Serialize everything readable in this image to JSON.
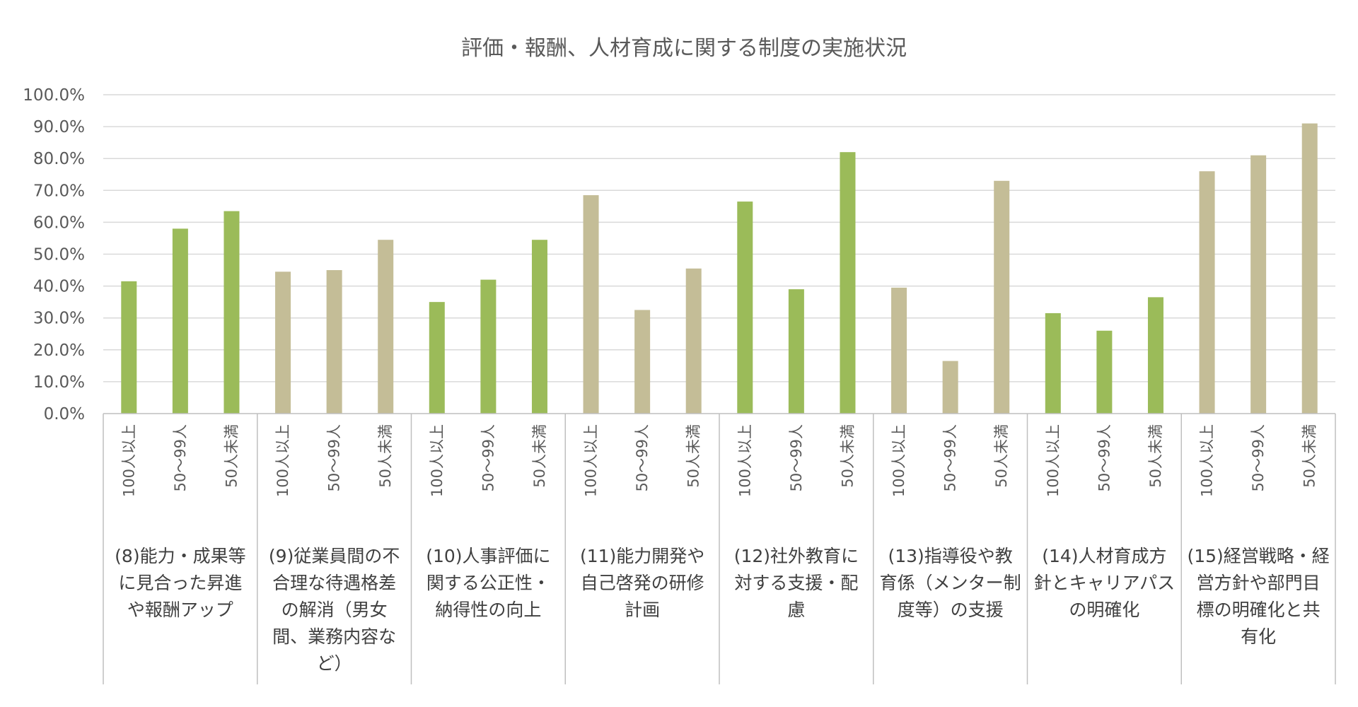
{
  "chart_data": {
    "type": "bar",
    "title": "評価・報酬、人材育成に関する制度の実施状況",
    "ylim": [
      0,
      100
    ],
    "yticks": [
      "0.0%",
      "10.0%",
      "20.0%",
      "30.0%",
      "40.0%",
      "50.0%",
      "60.0%",
      "70.0%",
      "80.0%",
      "90.0%",
      "100.0%"
    ],
    "grid": true,
    "colors": {
      "green": "#9bbb59",
      "tan": "#c4bd97"
    },
    "groups": [
      {
        "label_lines": [
          "(8)能力・成果等",
          "に見合った昇進",
          "や報酬アップ"
        ],
        "color": "#9bbb59",
        "categories": [
          "100人以上",
          "50～99人",
          "50人未満"
        ],
        "values": [
          41.5,
          58.0,
          63.5
        ]
      },
      {
        "label_lines": [
          "(9)従業員間の不",
          "合理な待遇格差",
          "の解消（男女",
          "間、業務内容な",
          "ど）"
        ],
        "color": "#c4bd97",
        "categories": [
          "100人以上",
          "50～99人",
          "50人未満"
        ],
        "values": [
          44.5,
          45.0,
          54.5
        ]
      },
      {
        "label_lines": [
          "(10)人事評価に",
          "関する公正性・",
          "納得性の向上"
        ],
        "color": "#9bbb59",
        "categories": [
          "100人以上",
          "50～99人",
          "50人未満"
        ],
        "values": [
          35.0,
          42.0,
          54.5
        ]
      },
      {
        "label_lines": [
          "(11)能力開発や",
          "自己啓発の研修",
          "計画"
        ],
        "color": "#c4bd97",
        "categories": [
          "100人以上",
          "50～99人",
          "50人未満"
        ],
        "values": [
          68.5,
          32.5,
          45.5
        ]
      },
      {
        "label_lines": [
          "(12)社外教育に",
          "対する支援・配",
          "慮"
        ],
        "color": "#9bbb59",
        "categories": [
          "100人以上",
          "50～99人",
          "50人未満"
        ],
        "values": [
          66.5,
          39.0,
          82.0
        ]
      },
      {
        "label_lines": [
          "(13)指導役や教",
          "育係（メンター制",
          "度等）の支援"
        ],
        "color": "#c4bd97",
        "categories": [
          "100人以上",
          "50～99人",
          "50人未満"
        ],
        "values": [
          39.5,
          16.5,
          73.0
        ]
      },
      {
        "label_lines": [
          "(14)人材育成方",
          "針とキャリアパス",
          "の明確化"
        ],
        "color": "#9bbb59",
        "categories": [
          "100人以上",
          "50～99人",
          "50人未満"
        ],
        "values": [
          31.5,
          26.0,
          36.5
        ]
      },
      {
        "label_lines": [
          "(15)経営戦略・経",
          "営方針や部門目",
          "標の明確化と共",
          "有化"
        ],
        "color": "#c4bd97",
        "categories": [
          "100人以上",
          "50～99人",
          "50人未満"
        ],
        "values": [
          76.0,
          81.0,
          91.0
        ]
      }
    ]
  }
}
